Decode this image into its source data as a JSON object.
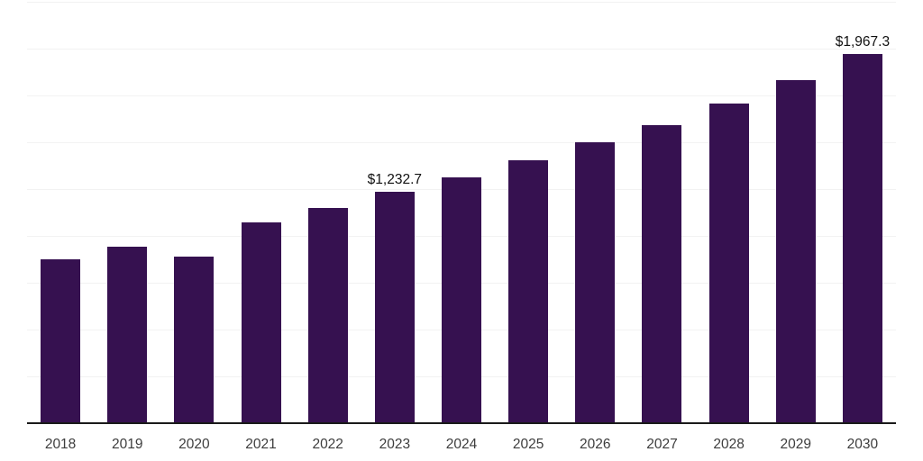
{
  "chart_data": {
    "type": "bar",
    "title": "",
    "xlabel": "",
    "ylabel": "",
    "categories": [
      "2018",
      "2019",
      "2020",
      "2021",
      "2022",
      "2023",
      "2024",
      "2025",
      "2026",
      "2027",
      "2028",
      "2029",
      "2030"
    ],
    "values": [
      870,
      936,
      884,
      1066,
      1142,
      1232.7,
      1310,
      1397,
      1493,
      1589,
      1704,
      1829,
      1967.3
    ],
    "data_labels": [
      "",
      "",
      "",
      "",
      "",
      "$1,232.7",
      "",
      "",
      "",
      "",
      "",
      "",
      "$1,967.3"
    ],
    "value_prefix": "$",
    "ylim": [
      0,
      2250
    ],
    "gridline_step": 250,
    "grid": "horizontal",
    "legend": "none",
    "colors": {
      "bar": "#361150",
      "gridline": "#f2f2f2",
      "axis": "#1a1a1a",
      "tick_text": "#3d3d3d",
      "label_text": "#111111",
      "background": "#ffffff"
    }
  }
}
